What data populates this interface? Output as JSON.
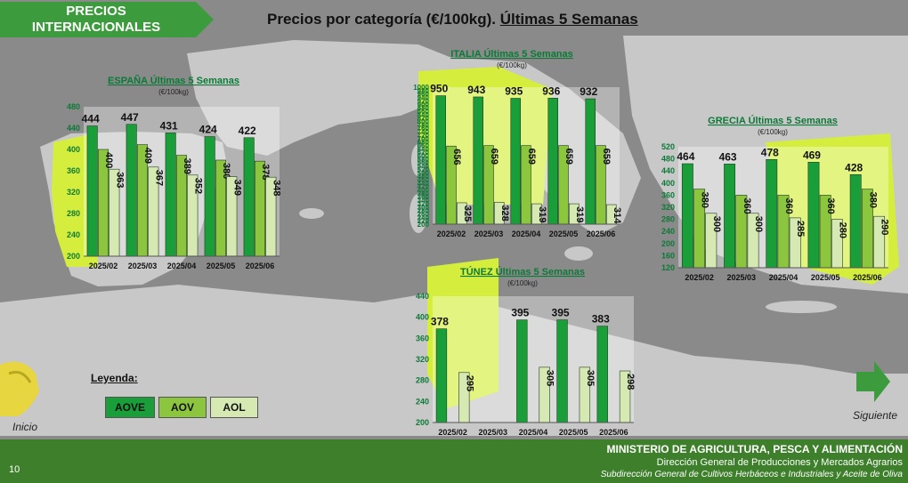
{
  "header": {
    "section_line1": "PRECIOS",
    "section_line2": "INTERNACIONALES",
    "title_prefix": "Precios por categoría (€/100kg). ",
    "title_underlined": "Últimas 5 Semanas"
  },
  "colors": {
    "aove": "#1a9e3a",
    "aov": "#8cc63f",
    "aol": "#d6e9b3",
    "title_green": "#0b7a37",
    "footer": "#3e7f2b"
  },
  "legend": {
    "title": "Leyenda",
    "aove": "AOVE",
    "aov": "AOV",
    "aol": "AOL"
  },
  "nav": {
    "home": "Inicio",
    "next": "Siguiente"
  },
  "footer": {
    "line1": "MINISTERIO DE AGRICULTURA, PESCA Y ALIMENTACIÓN",
    "line2": "Dirección General de Producciones y Mercados Agrarios",
    "line3": "Subdirección General de Cultivos Herbáceos e Industriales y Aceite de Oliva"
  },
  "page_number": "10",
  "chart_data": [
    {
      "id": "espana",
      "type": "bar",
      "title": "ESPAÑA Últimas 5 Semanas",
      "subtitle": "(€/100kg)",
      "categories": [
        "2025/02",
        "2025/03",
        "2025/04",
        "2025/05",
        "2025/06"
      ],
      "ylim": [
        200,
        480
      ],
      "yticks": [
        "200",
        "240",
        "280",
        "320",
        "360",
        "400",
        "440",
        "480"
      ],
      "series": [
        {
          "key": "aove",
          "values": [
            444,
            447,
            431,
            424,
            422
          ]
        },
        {
          "key": "aov",
          "values": [
            400,
            409,
            389,
            380,
            378
          ]
        },
        {
          "key": "aol",
          "values": [
            363,
            367,
            352,
            349,
            348
          ]
        }
      ]
    },
    {
      "id": "italia",
      "type": "bar",
      "title": "ITALIA Últimas 5 Semanas",
      "subtitle": "(€/100kg)",
      "categories": [
        "2025/02",
        "2025/03",
        "2025/04",
        "2025/05",
        "2025/06"
      ],
      "ylim": [
        200,
        1000
      ],
      "yticks": [
        "200",
        "220",
        "240",
        "260",
        "280",
        "300",
        "320",
        "340",
        "360",
        "380",
        "400",
        "420",
        "440",
        "460",
        "480",
        "500",
        "520",
        "540",
        "560",
        "580",
        "600",
        "620",
        "640",
        "660",
        "680",
        "700",
        "720",
        "740",
        "760",
        "780",
        "800",
        "820",
        "840",
        "860",
        "880",
        "900",
        "920",
        "940",
        "960",
        "980",
        "1000"
      ],
      "series": [
        {
          "key": "aove",
          "values": [
            950,
            943,
            935,
            936,
            932
          ]
        },
        {
          "key": "aov",
          "values": [
            656,
            659,
            659,
            659,
            659
          ]
        },
        {
          "key": "aol",
          "values": [
            325,
            328,
            319,
            319,
            314
          ]
        }
      ]
    },
    {
      "id": "grecia",
      "type": "bar",
      "title": "GRECIA Últimas 5 Semanas",
      "subtitle": "(€/100kg)",
      "categories": [
        "2025/02",
        "2025/03",
        "2025/04",
        "2025/05",
        "2025/06"
      ],
      "ylim": [
        120,
        520
      ],
      "yticks": [
        "120",
        "160",
        "200",
        "240",
        "280",
        "320",
        "360",
        "400",
        "440",
        "480",
        "520"
      ],
      "series": [
        {
          "key": "aove",
          "values": [
            464,
            463,
            478,
            469,
            428
          ]
        },
        {
          "key": "aov",
          "values": [
            380,
            360,
            360,
            360,
            380
          ]
        },
        {
          "key": "aol",
          "values": [
            300,
            300,
            285,
            280,
            290
          ]
        }
      ]
    },
    {
      "id": "tunez",
      "type": "bar",
      "title": "TÚNEZ Últimas 5 Semanas",
      "subtitle": "(€/100kg)",
      "categories": [
        "2025/02",
        "2025/03",
        "2025/04",
        "2025/05",
        "2025/06"
      ],
      "ylim": [
        200,
        440
      ],
      "yticks": [
        "200",
        "240",
        "280",
        "320",
        "360",
        "400",
        "440"
      ],
      "series": [
        {
          "key": "aove",
          "values": [
            378,
            null,
            395,
            395,
            383
          ]
        },
        {
          "key": "aov",
          "values": [
            null,
            null,
            null,
            null,
            null
          ]
        },
        {
          "key": "aol",
          "values": [
            295,
            null,
            305,
            305,
            298
          ]
        }
      ]
    }
  ]
}
